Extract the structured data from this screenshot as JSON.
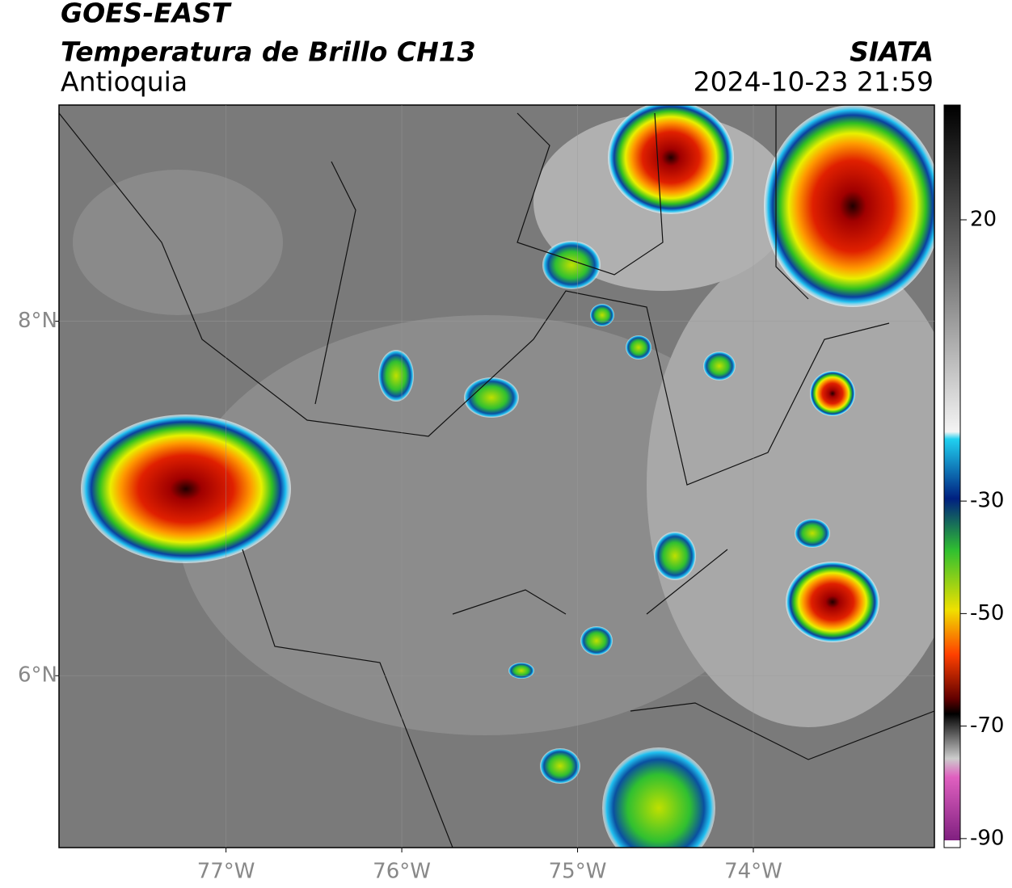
{
  "map": {
    "title": "GOES-EAST",
    "subtitle": "Temperatura de Brillo CH13",
    "region": "Antioquia",
    "source": "SIATA",
    "datetime": "2024-10-23 21:59",
    "lonlim": [
      -77.95,
      -72.97
    ],
    "latlim": [
      5.03,
      9.22
    ],
    "lon_ticks": [
      {
        "value": -77,
        "label": "77°W"
      },
      {
        "value": -76,
        "label": "76°W"
      },
      {
        "value": -75,
        "label": "75°W"
      },
      {
        "value": -74,
        "label": "74°W"
      }
    ],
    "lat_ticks": [
      {
        "value": 8,
        "label": "8°N"
      },
      {
        "value": 6,
        "label": "6°N"
      }
    ],
    "colorbar": {
      "lim": [
        -91.6,
        40.4
      ],
      "ticks": [
        20,
        -30,
        -50,
        -70,
        -90
      ]
    }
  }
}
